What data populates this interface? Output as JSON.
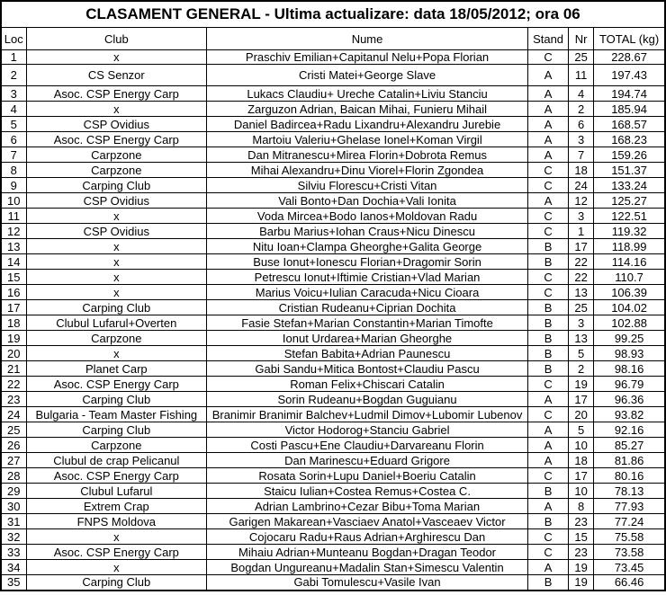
{
  "title": "CLASAMENT GENERAL - Ultima actualizare: data 18/05/2012; ora 06",
  "table": {
    "headers": [
      "Loc",
      "Club",
      "Nume",
      "Stand",
      "Nr",
      "TOTAL (kg)"
    ],
    "rows": [
      [
        "1",
        "x",
        "Praschiv Emilian+Capitanul Nelu+Popa Florian",
        "C",
        "25",
        "228.67"
      ],
      [
        "2",
        "CS Senzor",
        "Cristi Matei+George Slave",
        "A",
        "11",
        "197.43"
      ],
      [
        "3",
        "Asoc. CSP Energy Carp",
        "Lukacs Claudiu+ Ureche Catalin+Liviu Stanciu",
        "A",
        "4",
        "194.74"
      ],
      [
        "4",
        "x",
        "Zarguzon Adrian, Baican Mihai, Funieru Mihail",
        "A",
        "2",
        "185.94"
      ],
      [
        "5",
        "CSP Ovidius",
        "Daniel Badircea+Radu Lixandru+Alexandru Jurebie",
        "A",
        "6",
        "168.57"
      ],
      [
        "6",
        "Asoc. CSP Energy Carp",
        "Martoiu Valeriu+Ghelase Ionel+Koman Virgil",
        "A",
        "3",
        "168.23"
      ],
      [
        "7",
        "Carpzone",
        "Dan Mitranescu+Mirea Florin+Dobrota Remus",
        "A",
        "7",
        "159.26"
      ],
      [
        "8",
        "Carpzone",
        "Mihai Alexandru+Dinu Viorel+Florin Zgondea",
        "C",
        "18",
        "151.37"
      ],
      [
        "9",
        "Carping Club",
        "Silviu Florescu+Cristi Vitan",
        "C",
        "24",
        "133.24"
      ],
      [
        "10",
        "CSP Ovidius",
        "Vali Bonto+Dan Dochia+Vali Ionita",
        "A",
        "12",
        "125.27"
      ],
      [
        "11",
        "x",
        "Voda Mircea+Bodo Ianos+Moldovan Radu",
        "C",
        "3",
        "122.51"
      ],
      [
        "12",
        "CSP Ovidius",
        "Barbu Marius+Iohan Craus+Nicu Dinescu",
        "C",
        "1",
        "119.32"
      ],
      [
        "13",
        "x",
        "Nitu Ioan+Clampa Gheorghe+Galita George",
        "B",
        "17",
        "118.99"
      ],
      [
        "14",
        "x",
        "Buse Ionut+Ionescu Florian+Dragomir Sorin",
        "B",
        "22",
        "114.16"
      ],
      [
        "15",
        "x",
        "Petrescu Ionut+Iftimie Cristian+Vlad Marian",
        "C",
        "22",
        "110.7"
      ],
      [
        "16",
        "x",
        "Marius Voicu+Iulian Caracuda+Nicu Cioara",
        "C",
        "13",
        "106.39"
      ],
      [
        "17",
        "Carping Club",
        "Cristian Rudeanu+Ciprian Dochita",
        "B",
        "25",
        "104.02"
      ],
      [
        "18",
        "Clubul Lufarul+Overten",
        "Fasie Stefan+Marian Constantin+Marian Timofte",
        "B",
        "3",
        "102.88"
      ],
      [
        "19",
        "Carpzone",
        "Ionut Urdarea+Marian Gheorghe",
        "B",
        "13",
        "99.25"
      ],
      [
        "20",
        "x",
        "Stefan Babita+Adrian Paunescu",
        "B",
        "5",
        "98.93"
      ],
      [
        "21",
        "Planet Carp",
        "Gabi Sandu+Mitica Bontost+Claudiu Pascu",
        "B",
        "2",
        "98.16"
      ],
      [
        "22",
        "Asoc. CSP Energy Carp",
        "Roman Felix+Chiscari Catalin",
        "C",
        "19",
        "96.79"
      ],
      [
        "23",
        "Carping Club",
        "Sorin Rudeanu+Bogdan Guguianu",
        "A",
        "17",
        "96.36"
      ],
      [
        "24",
        "Bulgaria - Team Master Fishing",
        "Branimir Branimir Balchev+Ludmil Dimov+Lubomir Lubenov",
        "C",
        "20",
        "93.82"
      ],
      [
        "25",
        "Carping Club",
        "Victor Hodorog+Stanciu Gabriel",
        "A",
        "5",
        "92.16"
      ],
      [
        "26",
        "Carpzone",
        "Costi Pascu+Ene Claudiu+Darvareanu Florin",
        "A",
        "10",
        "85.27"
      ],
      [
        "27",
        "Clubul de crap Pelicanul",
        "Dan Marinescu+Eduard Grigore",
        "A",
        "18",
        "81.86"
      ],
      [
        "28",
        "Asoc. CSP Energy Carp",
        "Rosata Sorin+Lupu Daniel+Boeriu Catalin",
        "C",
        "17",
        "80.16"
      ],
      [
        "29",
        "Clubul Lufarul",
        "Staicu Iulian+Costea Remus+Costea C.",
        "B",
        "10",
        "78.13"
      ],
      [
        "30",
        "Extrem Crap",
        "Adrian Lambrino+Cezar Bibu+Toma Marian",
        "A",
        "8",
        "77.93"
      ],
      [
        "31",
        "FNPS Moldova",
        "Garigen Makarean+Vasciaev Anatol+Vasceaev Victor",
        "B",
        "23",
        "77.24"
      ],
      [
        "32",
        "x",
        "Cojocaru Radu+Raus Adrian+Arghirescu Dan",
        "C",
        "15",
        "75.58"
      ],
      [
        "33",
        "Asoc. CSP Energy Carp",
        "Mihaiu Adrian+Munteanu Bogdan+Dragan Teodor",
        "C",
        "23",
        "73.58"
      ],
      [
        "34",
        "x",
        "Bogdan Ungureanu+Madalin Stan+Simescu Valentin",
        "A",
        "19",
        "73.45"
      ],
      [
        "35",
        "Carping Club",
        "Gabi Tomulescu+Vasile Ivan",
        "B",
        "19",
        "66.46"
      ]
    ]
  }
}
